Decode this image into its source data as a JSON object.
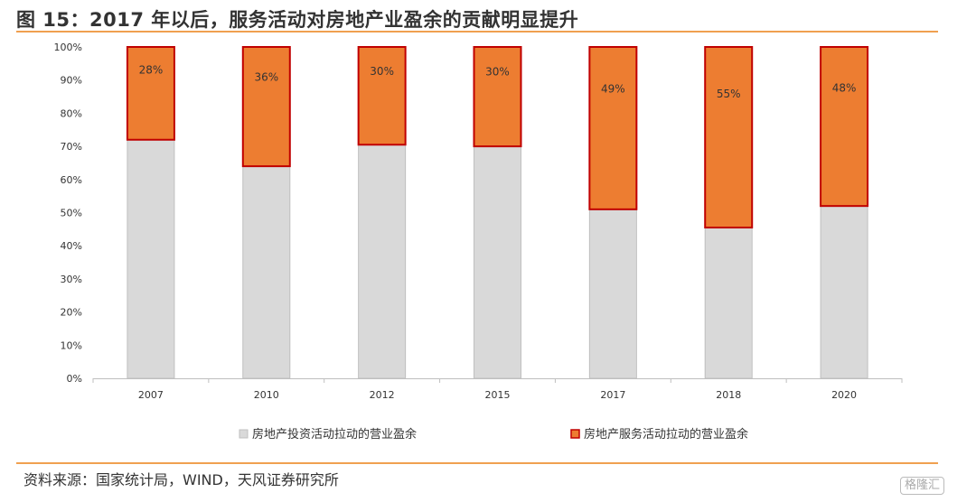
{
  "title": "图 15：2017 年以后，服务活动对房地产业盈余的贡献明显提升",
  "source": "资料来源：国家统计局，WIND，天风证券研究所",
  "watermark": "格隆汇",
  "colors": {
    "investment": "#d9d9d9",
    "investment_stroke": "#bfbfbf",
    "service": "#ed7d31",
    "service_stroke": "#c00000",
    "rule": "#f0a050"
  },
  "chart_data": {
    "type": "bar",
    "stacked": true,
    "categories": [
      "2007",
      "2010",
      "2012",
      "2015",
      "2017",
      "2018",
      "2020"
    ],
    "series": [
      {
        "name": "房地产投资活动拉动的营业盈余",
        "values": [
          72,
          64,
          70.5,
          70,
          51,
          45.5,
          52
        ]
      },
      {
        "name": "房地产服务活动拉动的营业盈余",
        "values": [
          28,
          36,
          29.5,
          30,
          49,
          54.5,
          48
        ]
      }
    ],
    "data_labels": [
      "28%",
      "36%",
      "30%",
      "30%",
      "49%",
      "55%",
      "48%"
    ],
    "ylim": [
      0,
      100
    ],
    "yticks": [
      "0%",
      "10%",
      "20%",
      "30%",
      "40%",
      "50%",
      "60%",
      "70%",
      "80%",
      "90%",
      "100%"
    ],
    "legend_position": "bottom",
    "grid": false
  }
}
